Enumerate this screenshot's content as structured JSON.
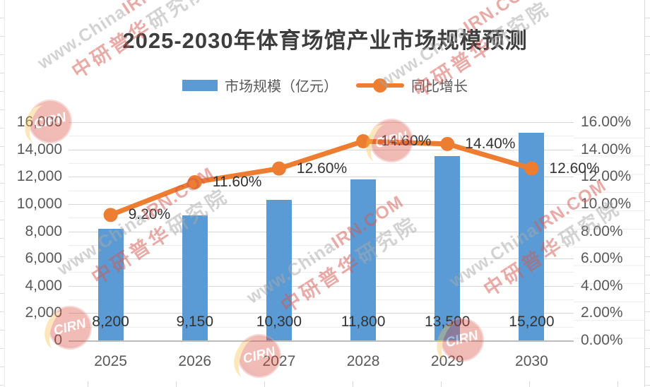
{
  "title": "2025-2030年体育场馆产业市场规模预测",
  "legend": [
    {
      "label": "市场规模（亿元）",
      "type": "bar",
      "color": "#5B9BD5"
    },
    {
      "label": "同比增长",
      "type": "line",
      "color": "#ED7D31"
    }
  ],
  "chart_data": {
    "type": "combo",
    "title": "2025-2030年体育场馆产业市场规模预测",
    "categories": [
      "2025",
      "2026",
      "2027",
      "2028",
      "2029",
      "2030"
    ],
    "series": [
      {
        "name": "市场规模（亿元）",
        "type": "bar",
        "axis": "left",
        "color": "#5B9BD5",
        "values": [
          8200,
          9150,
          10300,
          11800,
          13500,
          15200
        ],
        "labels": [
          "8,200",
          "9,150",
          "10,300",
          "11,800",
          "13,500",
          "15,200"
        ]
      },
      {
        "name": "同比增长",
        "type": "line",
        "axis": "right",
        "color": "#ED7D31",
        "values": [
          9.2,
          11.6,
          12.6,
          14.6,
          14.4,
          12.6
        ],
        "labels": [
          "9.20%",
          "11.60%",
          "12.60%",
          "14.60%",
          "14.40%",
          "12.60%"
        ]
      }
    ],
    "left_axis": {
      "min": 0,
      "max": 16000,
      "step": 2000,
      "minor_step": 1000,
      "labels": [
        "0",
        "2,000",
        "4,000",
        "6,000",
        "8,000",
        "10,000",
        "12,000",
        "14,000",
        "16,000"
      ]
    },
    "right_axis": {
      "min": 0,
      "max": 16,
      "step": 2,
      "labels": [
        "0.00%",
        "2.00%",
        "4.00%",
        "6.00%",
        "8.00%",
        "10.00%",
        "12.00%",
        "14.00%",
        "16.00%"
      ]
    },
    "grid": true,
    "legend_position": "top"
  },
  "colors": {
    "bar": "#5B9BD5",
    "line": "#ED7D31",
    "grid_major": "#d6d6d6",
    "grid_minor": "#ececec",
    "axis_line": "#bcbcbc"
  },
  "watermark": {
    "url_gray": "www.China",
    "url_red": "IRN.COM",
    "cn_red": "中研普华",
    "cn_gray": "研究院",
    "badge": "CIRN"
  }
}
